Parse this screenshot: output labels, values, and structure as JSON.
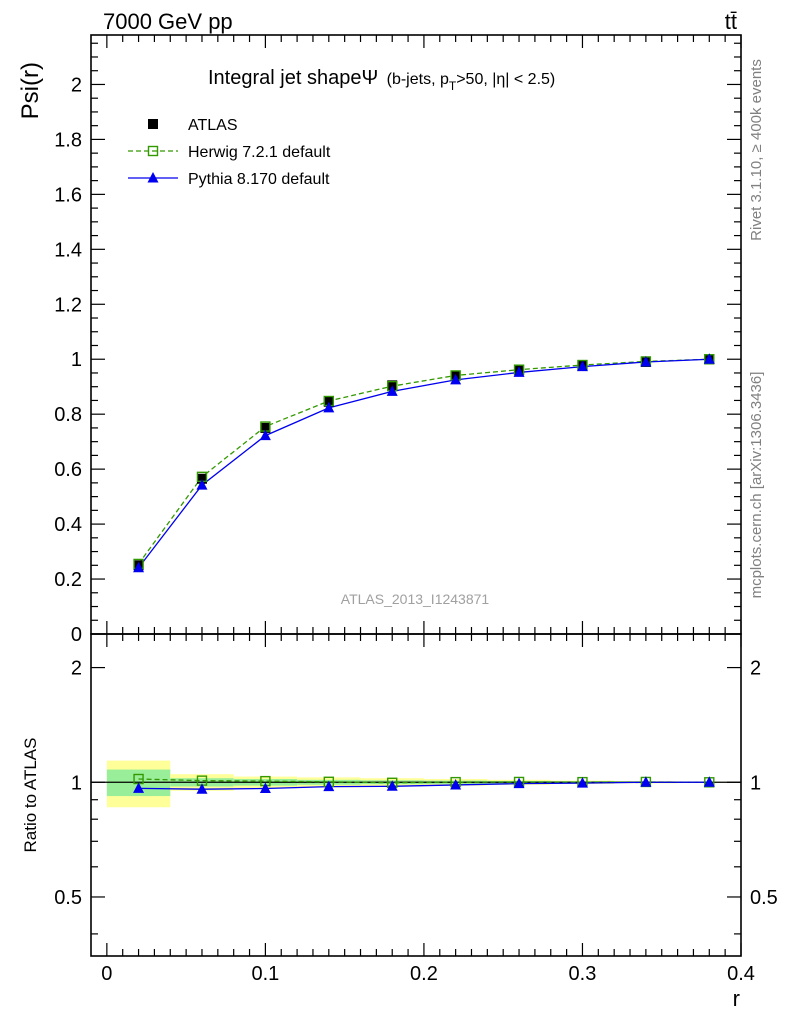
{
  "header": {
    "left": "7000 GeV pp",
    "right": "tt̄"
  },
  "side_labels": {
    "top": "Rivet 3.1.10, ≥ 400k events",
    "bottom": "mcplots.cern.ch [arXiv:1306.3436]"
  },
  "chart_data": {
    "type": "line",
    "title": "Integral jet shapeΨ",
    "title_note": "(b-jets, p",
    "title_note_sub": "T",
    "title_note_rest": ">50, |η| < 2.5)",
    "watermark": "ATLAS_2013_I1243871",
    "xlabel": "r",
    "ylabel": "Psi(r)",
    "ratio_ylabel": "Ratio to ATLAS",
    "xlim": [
      -0.01,
      0.4
    ],
    "ylim": [
      0,
      2.18
    ],
    "ratio_ylim": [
      0.35,
      2.45
    ],
    "x_ticks": [
      "0",
      "0.1",
      "0.2",
      "0.3",
      "0.4"
    ],
    "y_ticks": [
      "0",
      "0.2",
      "0.4",
      "0.6",
      "0.8",
      "1",
      "1.2",
      "1.4",
      "1.6",
      "1.8",
      "2"
    ],
    "ratio_y_ticks": [
      "0.5",
      "1",
      "2"
    ],
    "x": [
      0.02,
      0.06,
      0.1,
      0.14,
      0.18,
      0.22,
      0.26,
      0.3,
      0.34,
      0.38
    ],
    "bin_edges": [
      0.0,
      0.04,
      0.08,
      0.12,
      0.16,
      0.2,
      0.24,
      0.28,
      0.32,
      0.36,
      0.4
    ],
    "band_inner": [
      0.08,
      0.025,
      0.02,
      0.015,
      0.012,
      0.01,
      0.008,
      0.006,
      0.004,
      0.002
    ],
    "band_outer": [
      0.14,
      0.05,
      0.035,
      0.03,
      0.025,
      0.02,
      0.015,
      0.01,
      0.006,
      0.003
    ],
    "legend_position": "top-left",
    "series": [
      {
        "name": "ATLAS",
        "values": [
          0.25,
          0.565,
          0.75,
          0.845,
          0.905,
          0.94,
          0.96,
          0.978,
          0.99,
          1.0
        ],
        "ratio": [
          1,
          1,
          1,
          1,
          1,
          1,
          1,
          1,
          1,
          1
        ],
        "color": "#000000",
        "marker": "filled-square"
      },
      {
        "name": "Herwig 7.2.1 default",
        "values": [
          0.255,
          0.572,
          0.755,
          0.848,
          0.902,
          0.941,
          0.962,
          0.979,
          0.992,
          1.0
        ],
        "ratio": [
          1.02,
          1.01,
          1.007,
          1.003,
          0.997,
          1.001,
          1.002,
          1.001,
          1.002,
          1.0
        ],
        "color": "#339900",
        "marker": "open-square"
      },
      {
        "name": "Pythia 8.170 default",
        "values": [
          0.241,
          0.542,
          0.722,
          0.823,
          0.883,
          0.925,
          0.952,
          0.973,
          0.99,
          1.0
        ],
        "ratio": [
          0.964,
          0.959,
          0.963,
          0.974,
          0.976,
          0.984,
          0.992,
          0.995,
          1.0,
          1.0
        ],
        "color": "#0000ee",
        "marker": "filled-triangle"
      }
    ]
  }
}
